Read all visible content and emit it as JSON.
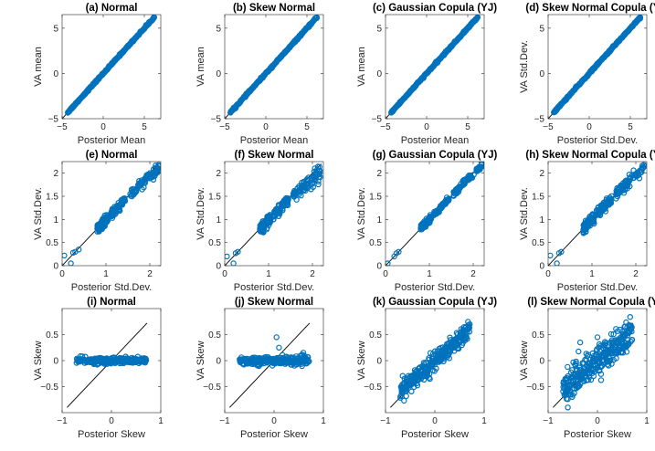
{
  "figure": {
    "marker_color": "#0072BD",
    "line_color": "#000000",
    "axis_color": "#262626"
  },
  "chart_data": [
    {
      "type": "scatter",
      "title": "(a) Normal",
      "xlabel": "Posterior Mean",
      "ylabel": "VA mean",
      "xlim": [
        -5,
        7
      ],
      "ylim": [
        -5,
        6.5
      ],
      "xticks": [
        -5,
        0,
        5
      ],
      "yticks": [
        -5,
        0,
        5
      ],
      "reference_line": [
        [
          -5,
          -5
        ],
        [
          6.2,
          6.2
        ]
      ],
      "series": [
        {
          "name": "points",
          "kind": "linear",
          "x_range": [
            -4.3,
            6.2
          ],
          "n": 220,
          "slope": 1.0,
          "intercept": 0,
          "spread": 0.05,
          "outliers": [
            [
              -4.3,
              -4.3
            ],
            [
              6.2,
              6.2
            ]
          ]
        }
      ]
    },
    {
      "type": "scatter",
      "title": "(b) Skew Normal",
      "xlabel": "Posterior Mean",
      "ylabel": "VA mean",
      "xlim": [
        -5,
        7
      ],
      "ylim": [
        -5,
        6.5
      ],
      "xticks": [
        -5,
        0,
        5
      ],
      "yticks": [
        -5,
        0,
        5
      ],
      "reference_line": [
        [
          -5,
          -5
        ],
        [
          6.2,
          6.2
        ]
      ],
      "series": [
        {
          "name": "points",
          "kind": "linear",
          "x_range": [
            -4.3,
            6.2
          ],
          "n": 220,
          "slope": 1.0,
          "intercept": 0,
          "spread": 0.05,
          "outliers": [
            [
              -4.3,
              -4.3
            ],
            [
              6.2,
              6.2
            ]
          ]
        }
      ]
    },
    {
      "type": "scatter",
      "title": "(c) Gaussian Copula (YJ)",
      "xlabel": "Posterior Mean",
      "ylabel": "VA mean",
      "xlim": [
        -5,
        7
      ],
      "ylim": [
        -5,
        6.5
      ],
      "xticks": [
        -5,
        0,
        5
      ],
      "yticks": [
        -5,
        0,
        5
      ],
      "reference_line": [
        [
          -5,
          -5
        ],
        [
          6.2,
          6.2
        ]
      ],
      "series": [
        {
          "name": "points",
          "kind": "linear",
          "x_range": [
            -4.3,
            6.2
          ],
          "n": 220,
          "slope": 1.0,
          "intercept": 0,
          "spread": 0.05,
          "outliers": [
            [
              -4.3,
              -4.3
            ],
            [
              6.2,
              6.2
            ]
          ]
        }
      ]
    },
    {
      "type": "scatter",
      "title": "(d) Skew Normal Copula (YJ)",
      "xlabel": "Posterior Std.Dev.",
      "ylabel": "VA Std.Dev.",
      "xlim": [
        -5,
        7
      ],
      "ylim": [
        -5,
        6.5
      ],
      "xticks": [
        -5,
        0,
        5
      ],
      "yticks": [
        -5,
        0,
        5
      ],
      "reference_line": [
        [
          -5,
          -5
        ],
        [
          6.2,
          6.2
        ]
      ],
      "series": [
        {
          "name": "points",
          "kind": "linear",
          "x_range": [
            -4.3,
            6.2
          ],
          "n": 220,
          "slope": 1.0,
          "intercept": 0,
          "spread": 0.05,
          "outliers": [
            [
              -4.3,
              -4.3
            ],
            [
              6.2,
              6.2
            ]
          ]
        }
      ]
    },
    {
      "type": "scatter",
      "title": "(e) Normal",
      "xlabel": "Posterior Std.Dev.",
      "ylabel": "VA Std.Dev.",
      "xlim": [
        0,
        2.25
      ],
      "ylim": [
        0,
        2.25
      ],
      "xticks": [
        0,
        1,
        2
      ],
      "yticks": [
        0,
        0.5,
        1,
        1.5,
        2
      ],
      "reference_line": [
        [
          0,
          0
        ],
        [
          2.2,
          2.2
        ]
      ],
      "series": [
        {
          "name": "points",
          "kind": "sd",
          "n": 260,
          "bend": 0.12,
          "spread": 0.05,
          "outliers": [
            [
              0.05,
              0.22
            ],
            [
              0.2,
              0.05
            ],
            [
              0.25,
              0.28
            ],
            [
              0.3,
              0.3
            ],
            [
              0.38,
              0.35
            ],
            [
              2.2,
              2.15
            ]
          ]
        }
      ]
    },
    {
      "type": "scatter",
      "title": "(f) Skew Normal",
      "xlabel": "Posterior Std.Dev.",
      "ylabel": "VA Std.Dev.",
      "xlim": [
        0,
        2.25
      ],
      "ylim": [
        0,
        2.25
      ],
      "xticks": [
        0,
        1,
        2
      ],
      "yticks": [
        0,
        0.5,
        1,
        1.5,
        2
      ],
      "reference_line": [
        [
          0,
          0
        ],
        [
          2.2,
          2.2
        ]
      ],
      "series": [
        {
          "name": "points",
          "kind": "sd",
          "n": 260,
          "bend": 0.2,
          "spread": 0.05,
          "outliers": [
            [
              0.05,
              0.2
            ],
            [
              0.2,
              0.05
            ],
            [
              0.25,
              0.27
            ],
            [
              0.3,
              0.3
            ],
            [
              2.15,
              2.0
            ]
          ]
        }
      ]
    },
    {
      "type": "scatter",
      "title": "(g) Gaussian Copula (YJ)",
      "xlabel": "Posterior Std.Dev.",
      "ylabel": "VA Std.Dev.",
      "xlim": [
        0,
        2.25
      ],
      "ylim": [
        0,
        2.25
      ],
      "xticks": [
        0,
        1,
        2
      ],
      "yticks": [
        0,
        0.5,
        1,
        1.5,
        2
      ],
      "reference_line": [
        [
          0,
          0
        ],
        [
          2.2,
          2.2
        ]
      ],
      "series": [
        {
          "name": "points",
          "kind": "sd",
          "n": 260,
          "bend": 0.02,
          "spread": 0.03,
          "outliers": [
            [
              0.05,
              0.05
            ],
            [
              0.2,
              0.2
            ],
            [
              0.25,
              0.27
            ],
            [
              0.3,
              0.3
            ],
            [
              2.2,
              2.2
            ]
          ]
        }
      ]
    },
    {
      "type": "scatter",
      "title": "(h) Skew Normal Copula (YJ)",
      "xlabel": "Posterior Std.Dev.",
      "ylabel": "VA Std.Dev.",
      "xlim": [
        0,
        2.25
      ],
      "ylim": [
        0,
        2.25
      ],
      "xticks": [
        0,
        1,
        2
      ],
      "yticks": [
        0,
        0.5,
        1,
        1.5,
        2
      ],
      "reference_line": [
        [
          0,
          0
        ],
        [
          2.2,
          2.2
        ]
      ],
      "series": [
        {
          "name": "points",
          "kind": "sd",
          "n": 260,
          "bend": 0.05,
          "spread": 0.06,
          "outliers": [
            [
              0.05,
              0.22
            ],
            [
              0.2,
              0.05
            ],
            [
              0.25,
              0.27
            ],
            [
              0.3,
              0.3
            ],
            [
              2.2,
              2.15
            ]
          ]
        }
      ]
    },
    {
      "type": "scatter",
      "title": "(i) Normal",
      "xlabel": "Posterior Skew",
      "ylabel": "VA Skew",
      "xlim": [
        -1,
        1
      ],
      "ylim": [
        -1,
        1
      ],
      "xticks": [
        -1,
        0,
        1
      ],
      "yticks": [
        -0.5,
        0,
        0.5
      ],
      "reference_line": [
        [
          -0.9,
          -0.9
        ],
        [
          0.72,
          0.72
        ]
      ],
      "series": [
        {
          "name": "points",
          "kind": "flat",
          "x_range": [
            -0.7,
            0.7
          ],
          "n": 260,
          "slope": 0.0,
          "spread": 0.03,
          "outliers": []
        }
      ]
    },
    {
      "type": "scatter",
      "title": "(j) Skew Normal",
      "xlabel": "Posterior Skew",
      "ylabel": "VA Skew",
      "xlim": [
        -1,
        1
      ],
      "ylim": [
        -1,
        1
      ],
      "xticks": [
        -1,
        0,
        1
      ],
      "yticks": [
        -0.5,
        0,
        0.5
      ],
      "reference_line": [
        [
          -0.9,
          -0.9
        ],
        [
          0.72,
          0.72
        ]
      ],
      "series": [
        {
          "name": "points",
          "kind": "flat",
          "x_range": [
            -0.7,
            0.7
          ],
          "n": 260,
          "slope": 0.0,
          "spread": 0.04,
          "outliers": [
            [
              0.05,
              0.45
            ],
            [
              0.1,
              0.25
            ]
          ]
        }
      ]
    },
    {
      "type": "scatter",
      "title": "(k) Gaussian Copula (YJ)",
      "xlabel": "Posterior Skew",
      "ylabel": "VA Skew",
      "xlim": [
        -1,
        1
      ],
      "ylim": [
        -1,
        1
      ],
      "xticks": [
        -1,
        0,
        1
      ],
      "yticks": [
        -0.5,
        0,
        0.5
      ],
      "reference_line": [
        [
          -0.9,
          -0.9
        ],
        [
          0.72,
          0.72
        ]
      ],
      "series": [
        {
          "name": "points",
          "kind": "linear",
          "x_range": [
            -0.7,
            0.7
          ],
          "n": 300,
          "slope": 0.85,
          "intercept": 0,
          "spread": 0.09,
          "outliers": []
        }
      ]
    },
    {
      "type": "scatter",
      "title": "(l) Skew Normal Copula (YJ)",
      "xlabel": "Posterior Skew",
      "ylabel": "VA Skew",
      "xlim": [
        -1,
        1
      ],
      "ylim": [
        -1,
        1
      ],
      "xticks": [
        -1,
        0,
        1
      ],
      "yticks": [
        -0.5,
        0,
        0.5
      ],
      "reference_line": [
        [
          -0.9,
          -0.9
        ],
        [
          0.72,
          0.72
        ]
      ],
      "series": [
        {
          "name": "points",
          "kind": "linear",
          "x_range": [
            -0.7,
            0.7
          ],
          "n": 320,
          "slope": 0.75,
          "intercept": 0,
          "spread": 0.14,
          "outliers": [
            [
              -0.35,
              0.35
            ],
            [
              0.0,
              0.45
            ],
            [
              -0.6,
              -0.9
            ]
          ]
        }
      ]
    }
  ]
}
